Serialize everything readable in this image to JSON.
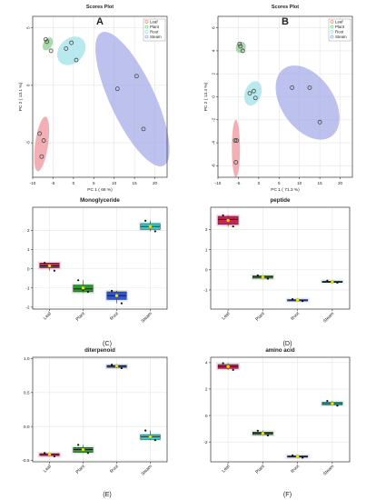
{
  "chart_data": [
    {
      "id": "A",
      "type": "scatter",
      "title": "Scores Plot",
      "panel_letter": "A",
      "xlabel": "PC 1 (  68 %)",
      "ylabel": "PC 2 (  13.1 %)",
      "xlim": [
        -10,
        23
      ],
      "ylim": [
        -8,
        6
      ],
      "xticks": [
        -10,
        -5,
        0,
        5,
        10,
        15,
        20
      ],
      "yticks": [
        -5,
        0,
        5
      ],
      "grid": true,
      "legend": "top-right",
      "series": [
        {
          "name": "Leaf",
          "color": "#ec8e95",
          "points": [
            [
              -8.3,
              -4.2
            ],
            [
              -7.3,
              -4.8
            ],
            [
              -7.8,
              -6.2
            ]
          ],
          "ellipse": {
            "cx": -7.8,
            "cy": -5.1,
            "rx": 1.6,
            "ry": 2.4,
            "angle": -8
          }
        },
        {
          "name": "Plant",
          "color": "#86c98a",
          "points": [
            [
              -6.5,
              3.8
            ],
            [
              -5.5,
              3.0
            ],
            [
              -6.8,
              4.0
            ]
          ],
          "ellipse": {
            "cx": -6.3,
            "cy": 3.6,
            "rx": 1.1,
            "ry": 0.6,
            "angle": -30
          }
        },
        {
          "name": "Root",
          "color": "#98e0e8",
          "points": [
            [
              -1.8,
              3.2
            ],
            [
              -0.5,
              3.7
            ],
            [
              0.7,
              2.2
            ]
          ],
          "ellipse": {
            "cx": -0.5,
            "cy": 3.0,
            "rx": 3.0,
            "ry": 1.4,
            "angle": -45
          }
        },
        {
          "name": "Steam",
          "color": "#9fa6e6",
          "points": [
            [
              10.8,
              -0.3
            ],
            [
              15.5,
              0.8
            ],
            [
              17.2,
              -3.8
            ]
          ],
          "ellipse": {
            "cx": 14.5,
            "cy": -1.2,
            "rx": 5.5,
            "ry": 6.4,
            "angle": 25
          }
        }
      ]
    },
    {
      "id": "B",
      "type": "scatter",
      "title": "Scores Plot",
      "panel_letter": "B",
      "xlabel": "PC 1 (  71.3 %)",
      "ylabel": "PC 2 (  13.4 %)",
      "xlim": [
        -10,
        23
      ],
      "ylim": [
        -7,
        7
      ],
      "xticks": [
        -10,
        -5,
        0,
        5,
        10,
        15,
        20
      ],
      "yticks": [
        -6,
        -4,
        -2,
        0,
        2,
        4,
        6
      ],
      "grid": true,
      "legend": "top-right",
      "series": [
        {
          "name": "Leaf",
          "color": "#ec8e95",
          "points": [
            [
              -5.8,
              -3.8
            ],
            [
              -5.4,
              -3.8
            ],
            [
              -5.6,
              -5.7
            ]
          ],
          "ellipse": {
            "cx": -5.6,
            "cy": -4.5,
            "rx": 1.0,
            "ry": 2.5,
            "angle": 0
          }
        },
        {
          "name": "Plant",
          "color": "#86c98a",
          "points": [
            [
              -4.5,
              4.4
            ],
            [
              -3.9,
              4.0
            ],
            [
              -4.7,
              4.6
            ]
          ],
          "ellipse": {
            "cx": -4.4,
            "cy": 4.3,
            "rx": 1.2,
            "ry": 0.5,
            "angle": -25
          }
        },
        {
          "name": "Root",
          "color": "#98e0e8",
          "points": [
            [
              -2.2,
              0.3
            ],
            [
              -1.2,
              0.5
            ],
            [
              -0.8,
              -0.1
            ]
          ],
          "ellipse": {
            "cx": -1.4,
            "cy": 0.3,
            "rx": 2.0,
            "ry": 1.1,
            "angle": -20
          }
        },
        {
          "name": "Steam",
          "color": "#9fa6e6",
          "points": [
            [
              8.2,
              0.8
            ],
            [
              12.5,
              0.8
            ],
            [
              15.0,
              -2.2
            ]
          ],
          "ellipse": {
            "cx": 12.0,
            "cy": -0.5,
            "rx": 6.4,
            "ry": 3.6,
            "angle": 35
          }
        }
      ]
    },
    {
      "id": "C",
      "type": "box",
      "title": "Monoglyceride",
      "caption": "(C)",
      "categories": [
        "Leaf",
        "Plant",
        "Root",
        "Steam"
      ],
      "colors": [
        "#cc2255",
        "#2e9a2e",
        "#3355cc",
        "#33cccc"
      ],
      "ylim": [
        -2.1,
        3.2
      ],
      "yticks": [
        -2,
        -1,
        0,
        1,
        2
      ],
      "ytick_labels": [
        "-2",
        "-1",
        "0",
        "1",
        "2"
      ],
      "boxes": [
        {
          "q1": 0.05,
          "median": 0.15,
          "q3": 0.3,
          "min": -0.1,
          "max": 0.3,
          "mean": 0.15,
          "points": [
            0.3,
            0.1,
            -0.1
          ]
        },
        {
          "q1": -1.2,
          "median": -1.05,
          "q3": -0.85,
          "min": -1.25,
          "max": -0.6,
          "mean": -1.0,
          "points": [
            -0.6,
            -1.1,
            -1.2
          ]
        },
        {
          "q1": -1.6,
          "median": -1.4,
          "q3": -1.2,
          "min": -1.8,
          "max": -1.15,
          "mean": -1.4,
          "points": [
            -1.15,
            -1.4,
            -1.8
          ]
        },
        {
          "q1": 2.05,
          "median": 2.2,
          "q3": 2.35,
          "min": 1.95,
          "max": 2.5,
          "mean": 2.2,
          "points": [
            2.5,
            2.2,
            1.95
          ]
        }
      ]
    },
    {
      "id": "D",
      "type": "box",
      "title": "peptide",
      "caption": "(D)",
      "categories": [
        "Leaf",
        "Plant",
        "Root",
        "Steam"
      ],
      "colors": [
        "#cc2255",
        "#2e9a2e",
        "#3355cc",
        "#33cccc"
      ],
      "ylim": [
        -1.95,
        3.1
      ],
      "yticks": [
        -1,
        0,
        1,
        2
      ],
      "ytick_labels": [
        "-1",
        "0",
        "1",
        "2"
      ],
      "boxes": [
        {
          "q1": 2.25,
          "median": 2.5,
          "q3": 2.65,
          "min": 2.15,
          "max": 2.7,
          "mean": 2.45,
          "points": [
            2.7,
            2.5,
            2.15
          ]
        },
        {
          "q1": -0.42,
          "median": -0.36,
          "q3": -0.3,
          "min": -0.44,
          "max": -0.28,
          "mean": -0.36,
          "points": [
            -0.28,
            -0.36,
            -0.44
          ]
        },
        {
          "q1": -1.53,
          "median": -1.5,
          "q3": -1.48,
          "min": -1.55,
          "max": -1.46,
          "mean": -1.5,
          "points": [
            -1.46,
            -1.5,
            -1.55
          ]
        },
        {
          "q1": -0.63,
          "median": -0.6,
          "q3": -0.56,
          "min": -0.64,
          "max": -0.54,
          "mean": -0.6,
          "points": [
            -0.54,
            -0.6,
            -0.64
          ]
        }
      ]
    },
    {
      "id": "E",
      "type": "box",
      "title": "diterpenoid",
      "caption": "(E)",
      "categories": [
        "Leaf",
        "Plant",
        "Root",
        "Steam"
      ],
      "colors": [
        "#cc2255",
        "#2e9a2e",
        "#3355cc",
        "#33cccc"
      ],
      "ylim": [
        -0.52,
        1.02
      ],
      "yticks": [
        -0.5,
        0.0,
        0.5,
        1.0
      ],
      "ytick_labels": [
        "-0.5",
        "0.0",
        "0.5",
        "1.0"
      ],
      "boxes": [
        {
          "q1": -0.43,
          "median": -0.41,
          "q3": -0.4,
          "min": -0.44,
          "max": -0.39,
          "mean": -0.41,
          "points": [
            -0.39,
            -0.41,
            -0.44
          ]
        },
        {
          "q1": -0.38,
          "median": -0.34,
          "q3": -0.31,
          "min": -0.39,
          "max": -0.27,
          "mean": -0.34,
          "points": [
            -0.27,
            -0.34,
            -0.39
          ]
        },
        {
          "q1": 0.87,
          "median": 0.89,
          "q3": 0.9,
          "min": 0.86,
          "max": 0.91,
          "mean": 0.89,
          "points": [
            0.91,
            0.89,
            0.86
          ]
        },
        {
          "q1": -0.19,
          "median": -0.15,
          "q3": -0.12,
          "min": -0.2,
          "max": -0.06,
          "mean": -0.15,
          "points": [
            -0.06,
            -0.15,
            -0.2
          ]
        }
      ]
    },
    {
      "id": "F",
      "type": "box",
      "title": "amino acid",
      "caption": "(F)",
      "categories": [
        "Leaf",
        "Plant",
        "Root",
        "Steam"
      ],
      "colors": [
        "#cc2255",
        "#2e9a2e",
        "#3355cc",
        "#33cccc"
      ],
      "ylim": [
        -3.5,
        4.4
      ],
      "yticks": [
        -2,
        0,
        2,
        4
      ],
      "ytick_labels": [
        "-2",
        "0",
        "2",
        "4"
      ],
      "boxes": [
        {
          "q1": 3.55,
          "median": 3.7,
          "q3": 3.85,
          "min": 3.45,
          "max": 3.95,
          "mean": 3.7,
          "points": [
            3.95,
            3.7,
            3.45
          ]
        },
        {
          "q1": -1.45,
          "median": -1.35,
          "q3": -1.25,
          "min": -1.5,
          "max": -1.15,
          "mean": -1.35,
          "points": [
            -1.15,
            -1.35,
            -1.5
          ]
        },
        {
          "q1": -3.15,
          "median": -3.1,
          "q3": -3.05,
          "min": -3.18,
          "max": -3.02,
          "mean": -3.1,
          "points": [
            -3.02,
            -3.1,
            -3.18
          ]
        },
        {
          "q1": 0.8,
          "median": 0.9,
          "q3": 1.0,
          "min": 0.75,
          "max": 1.1,
          "mean": 0.9,
          "points": [
            1.1,
            0.9,
            0.75
          ]
        }
      ]
    }
  ]
}
